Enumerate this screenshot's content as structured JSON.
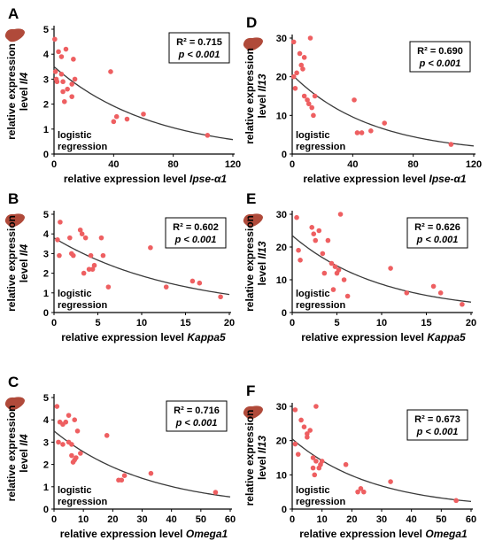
{
  "chart_data": [
    {
      "panel": "A",
      "type": "scatter",
      "xlabel_prefix": "relative expression level ",
      "xlabel_gene": "Ipse-α1",
      "ylabel_line1": "relative expression",
      "ylabel_line2_prefix": "level ",
      "ylabel_gene": "Il4",
      "xlim": [
        0,
        120
      ],
      "ylim": [
        0,
        5
      ],
      "xticks": [
        "0",
        "40",
        "80",
        "120"
      ],
      "yticks": [
        "0",
        "1",
        "2",
        "3",
        "4",
        "5"
      ],
      "r2_label": "R² = 0.715",
      "p_label": "p < 0.001",
      "annotation_line1": "logistic",
      "annotation_line2": "regression",
      "fit": {
        "a": 3.5,
        "b": 0.015
      },
      "points": [
        [
          0.5,
          4.6
        ],
        [
          1,
          3.3
        ],
        [
          1.5,
          3.0
        ],
        [
          2,
          2.9
        ],
        [
          3,
          4.1
        ],
        [
          5,
          3.9
        ],
        [
          5,
          3.2
        ],
        [
          6,
          2.9
        ],
        [
          6,
          2.5
        ],
        [
          7,
          2.1
        ],
        [
          8,
          4.2
        ],
        [
          9,
          2.6
        ],
        [
          12,
          2.8
        ],
        [
          12,
          2.3
        ],
        [
          13,
          3.8
        ],
        [
          14,
          3.0
        ],
        [
          38,
          3.3
        ],
        [
          40,
          1.3
        ],
        [
          42,
          1.5
        ],
        [
          49,
          1.4
        ],
        [
          60,
          1.6
        ],
        [
          103,
          0.75
        ]
      ]
    },
    {
      "panel": "D",
      "type": "scatter",
      "xlabel_prefix": "relative expression level ",
      "xlabel_gene": "Ipse-α1",
      "ylabel_line1": "relative expression",
      "ylabel_line2_prefix": "level ",
      "ylabel_gene": "Il13",
      "xlim": [
        0,
        120
      ],
      "ylim": [
        0,
        30
      ],
      "xticks": [
        "0",
        "40",
        "80",
        "120"
      ],
      "yticks": [
        "0",
        "10",
        "20",
        "30"
      ],
      "r2_label": "R² = 0.690",
      "p_label": "p < 0.001",
      "annotation_line1": "logistic",
      "annotation_line2": "regression",
      "fit": {
        "a": 20.5,
        "b": 0.019
      },
      "points": [
        [
          1,
          29
        ],
        [
          1,
          20
        ],
        [
          2,
          17
        ],
        [
          3,
          21
        ],
        [
          5,
          26
        ],
        [
          6,
          23
        ],
        [
          7,
          22
        ],
        [
          8,
          25
        ],
        [
          8,
          15
        ],
        [
          10,
          14
        ],
        [
          11,
          13
        ],
        [
          12,
          30
        ],
        [
          13,
          12
        ],
        [
          14,
          10
        ],
        [
          15,
          15
        ],
        [
          41,
          14
        ],
        [
          43,
          5.5
        ],
        [
          46,
          5.5
        ],
        [
          52,
          6
        ],
        [
          61,
          8
        ],
        [
          105,
          2.5
        ]
      ]
    },
    {
      "panel": "B",
      "type": "scatter",
      "xlabel_prefix": "relative expression level ",
      "xlabel_gene": "Kappa5",
      "ylabel_line1": "relative expression",
      "ylabel_line2_prefix": "level ",
      "ylabel_gene": "Il4",
      "xlim": [
        0,
        20
      ],
      "ylim": [
        0,
        5
      ],
      "xticks": [
        "0",
        "5",
        "10",
        "15",
        "20"
      ],
      "yticks": [
        "0",
        "1",
        "2",
        "3",
        "4",
        "5"
      ],
      "r2_label": "R² = 0.602",
      "p_label": "p < 0.001",
      "annotation_line1": "logistic",
      "annotation_line2": "regression",
      "fit": {
        "a": 3.8,
        "b": 0.071
      },
      "points": [
        [
          0.4,
          3.7
        ],
        [
          0.6,
          2.9
        ],
        [
          0.7,
          4.6
        ],
        [
          1.8,
          3.8
        ],
        [
          2.0,
          3.0
        ],
        [
          2.2,
          2.9
        ],
        [
          3.0,
          4.2
        ],
        [
          3.2,
          4.0
        ],
        [
          3.4,
          2.0
        ],
        [
          3.6,
          3.8
        ],
        [
          4.0,
          2.2
        ],
        [
          4.2,
          2.9
        ],
        [
          4.4,
          2.2
        ],
        [
          4.6,
          2.4
        ],
        [
          5.4,
          3.8
        ],
        [
          5.6,
          2.9
        ],
        [
          6.2,
          1.3
        ],
        [
          11.0,
          3.3
        ],
        [
          12.8,
          1.3
        ],
        [
          15.8,
          1.6
        ],
        [
          16.6,
          1.5
        ],
        [
          19.0,
          0.8
        ]
      ]
    },
    {
      "panel": "E",
      "type": "scatter",
      "xlabel_prefix": "relative expression level ",
      "xlabel_gene": "Kappa5",
      "ylabel_line1": "relative expression",
      "ylabel_line2_prefix": "level ",
      "ylabel_gene": "Il13",
      "xlim": [
        0,
        20
      ],
      "ylim": [
        0,
        30
      ],
      "xticks": [
        "0",
        "5",
        "10",
        "15",
        "20"
      ],
      "yticks": [
        "0",
        "10",
        "20",
        "30"
      ],
      "r2_label": "R² = 0.626",
      "p_label": "p < 0.001",
      "annotation_line1": "logistic",
      "annotation_line2": "regression",
      "fit": {
        "a": 23.5,
        "b": 0.1
      },
      "points": [
        [
          0.5,
          29
        ],
        [
          0.7,
          19
        ],
        [
          0.9,
          16
        ],
        [
          2.2,
          26
        ],
        [
          2.4,
          24
        ],
        [
          2.6,
          22
        ],
        [
          3.0,
          25
        ],
        [
          3.4,
          18
        ],
        [
          3.6,
          12
        ],
        [
          4.0,
          22
        ],
        [
          4.4,
          15
        ],
        [
          4.6,
          7
        ],
        [
          4.8,
          14
        ],
        [
          5.0,
          12
        ],
        [
          5.2,
          13
        ],
        [
          5.4,
          30
        ],
        [
          5.8,
          10
        ],
        [
          6.2,
          5
        ],
        [
          11.0,
          13.5
        ],
        [
          12.8,
          6
        ],
        [
          15.8,
          8
        ],
        [
          16.6,
          6
        ],
        [
          19.0,
          2.5
        ]
      ]
    },
    {
      "panel": "C",
      "type": "scatter",
      "xlabel_prefix": "relative expression level ",
      "xlabel_gene": "Omega1",
      "ylabel_line1": "relative expression",
      "ylabel_line2_prefix": "level ",
      "ylabel_gene": "Il4",
      "xlim": [
        0,
        60
      ],
      "ylim": [
        0,
        5
      ],
      "xticks": [
        "0",
        "10",
        "20",
        "30",
        "40",
        "50",
        "60"
      ],
      "yticks": [
        "0",
        "1",
        "2",
        "3",
        "4",
        "5"
      ],
      "r2_label": "R² = 0.716",
      "p_label": "p < 0.001",
      "annotation_line1": "logistic",
      "annotation_line2": "regression",
      "fit": {
        "a": 3.5,
        "b": 0.031
      },
      "points": [
        [
          1,
          4.6
        ],
        [
          1.5,
          3.0
        ],
        [
          2,
          3.9
        ],
        [
          3,
          3.8
        ],
        [
          3,
          2.9
        ],
        [
          4,
          3.9
        ],
        [
          5,
          4.2
        ],
        [
          5,
          3.0
        ],
        [
          6,
          2.9
        ],
        [
          6,
          2.4
        ],
        [
          6.5,
          2.1
        ],
        [
          7,
          2.2
        ],
        [
          7.5,
          2.3
        ],
        [
          7,
          4.0
        ],
        [
          8,
          3.5
        ],
        [
          9,
          2.5
        ],
        [
          18,
          3.3
        ],
        [
          22,
          1.3
        ],
        [
          23,
          1.3
        ],
        [
          24,
          1.5
        ],
        [
          33,
          1.6
        ],
        [
          55,
          0.75
        ]
      ]
    },
    {
      "panel": "F",
      "type": "scatter",
      "xlabel_prefix": "relative expression level ",
      "xlabel_gene": "Omega1",
      "ylabel_line1": "relative expression",
      "ylabel_line2_prefix": "level ",
      "ylabel_gene": "Il13",
      "xlim": [
        0,
        60
      ],
      "ylim": [
        0,
        30
      ],
      "xticks": [
        "0",
        "10",
        "20",
        "30",
        "40",
        "50",
        "60"
      ],
      "yticks": [
        "0",
        "10",
        "20",
        "30"
      ],
      "r2_label": "R² = 0.673",
      "p_label": "p < 0.001",
      "annotation_line1": "logistic",
      "annotation_line2": "regression",
      "fit": {
        "a": 20.5,
        "b": 0.037
      },
      "points": [
        [
          1,
          29
        ],
        [
          1,
          19
        ],
        [
          2,
          16
        ],
        [
          3,
          26
        ],
        [
          4,
          24
        ],
        [
          5,
          22
        ],
        [
          5,
          21
        ],
        [
          6,
          23
        ],
        [
          7,
          15
        ],
        [
          7,
          12
        ],
        [
          7.5,
          10
        ],
        [
          8,
          30
        ],
        [
          8,
          14
        ],
        [
          9,
          12
        ],
        [
          9.5,
          13
        ],
        [
          10,
          14
        ],
        [
          18,
          13
        ],
        [
          22,
          5
        ],
        [
          23,
          6
        ],
        [
          24,
          5
        ],
        [
          33,
          8
        ],
        [
          55,
          2.5
        ]
      ]
    }
  ],
  "colors": {
    "point": "#ee5f61",
    "fit_line": "#3a3a3a",
    "axis": "#000000",
    "liver_icon": "#b04a3a"
  }
}
